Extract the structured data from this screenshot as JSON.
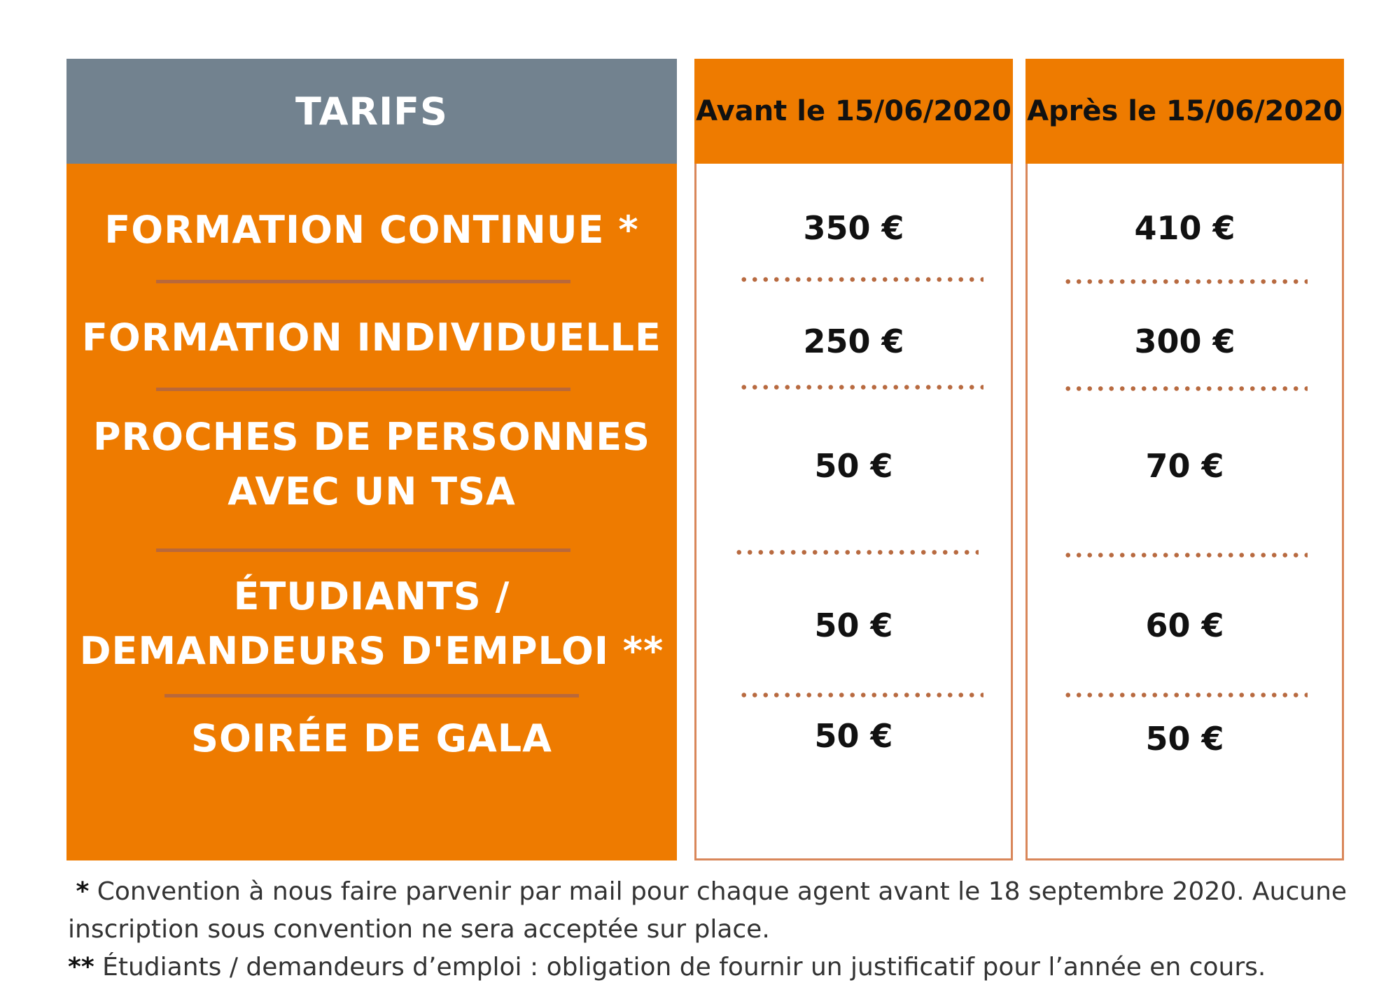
{
  "header": {
    "title": "TARIFS",
    "col_before": "Avant le 15/06/2020",
    "col_after": "Après le 15/06/2020"
  },
  "rows": [
    {
      "category_lines": [
        "FORMATION CONTINUE *"
      ],
      "before": "350 €",
      "after": "410 €"
    },
    {
      "category_lines": [
        "FORMATION INDIVIDUELLE"
      ],
      "before": "250 €",
      "after": "300 €"
    },
    {
      "category_lines": [
        "PROCHES DE PERSONNES",
        "AVEC UN TSA"
      ],
      "before": "50 €",
      "after": "70 €"
    },
    {
      "category_lines": [
        "ÉTUDIANTS /",
        "DEMANDEURS D'EMPLOI **"
      ],
      "before": "50 €",
      "after": "60 €"
    },
    {
      "category_lines": [
        "SOIRÉE DE GALA"
      ],
      "before": "50 €",
      "after": "50 €"
    }
  ],
  "footnotes": {
    "note1_marker": "*",
    "note1_text": "Convention à nous faire parvenir par mail pour chaque agent avant le 18 septembre 2020. Aucune inscription sous convention ne sera acceptée sur place.",
    "note2_marker": "**",
    "note2_text": "Étudiants / demandeurs d’emploi : obligation de fournir un justificatif pour l’année en cours."
  },
  "colors": {
    "orange": "#ee7b00",
    "slate": "#72828f",
    "separator": "#b9683a",
    "column_border": "#d9875a"
  }
}
